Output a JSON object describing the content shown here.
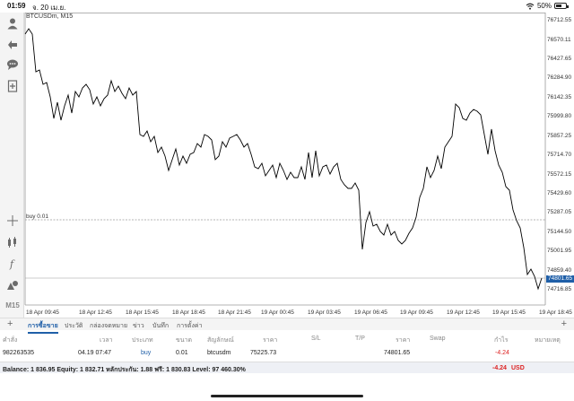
{
  "status_bar": {
    "time": "01:59",
    "date": "จ. 20 เม.ย.",
    "battery": "50%",
    "wifi_icon": "wifi-icon",
    "battery_icon": "battery-icon"
  },
  "chart": {
    "symbol_label": "BTCUSDm, M15",
    "order_line_label": "buy 0.01",
    "current_price_label": "74801.65",
    "y_ticks": [
      "76712.55",
      "76570.11",
      "76427.65",
      "76284.90",
      "76142.35",
      "75999.80",
      "75857.25",
      "75714.70",
      "75572.15",
      "75429.60",
      "75287.05",
      "75144.50",
      "75001.95",
      "74859.40",
      "74716.85"
    ],
    "x_ticks": [
      "18 Apr 09:45",
      "18 Apr 12:45",
      "18 Apr 15:45",
      "18 Apr 18:45",
      "18 Apr 21:45",
      "19 Apr 00:45",
      "19 Apr 03:45",
      "19 Apr 06:45",
      "19 Apr 09:45",
      "19 Apr 12:45",
      "19 Apr 15:45",
      "19 Apr 18:45"
    ],
    "colors": {
      "line": "#000000",
      "order_line": "#9a9a9a",
      "badge": "#1f5fa8"
    }
  },
  "sidebar": {
    "tools": [
      "profile-icon",
      "trade-arrows-icon",
      "chat-icon",
      "add-document-icon",
      "crosshair-icon",
      "indicator-icon",
      "function-icon",
      "objects-icon"
    ],
    "timeframe": "M15"
  },
  "tabs": {
    "items": [
      "การซื้อขาย",
      "ประวัติ",
      "กล่องจดหมาย",
      "ข่าว",
      "บันทึก",
      "การตั้งค่า"
    ],
    "active_index": 0
  },
  "table": {
    "headers": [
      "คำสั่ง",
      "เวลา",
      "ประเภท",
      "ขนาด",
      "สัญลักษณ์",
      "ราคา",
      "S/L",
      "T/P",
      "ราคา",
      "Swap",
      "กำไร",
      "หมายเหตุ"
    ],
    "row": {
      "order": "982263535",
      "time": "04.19 07:47",
      "type": "buy",
      "size": "0.01",
      "symbol": "btcusdm",
      "open_price": "75225.73",
      "sl": "",
      "tp": "",
      "current_price": "74801.65",
      "swap": "",
      "profit": "-4.24",
      "comment": ""
    }
  },
  "balance": {
    "summary": "Balance: 1 836.95 Equity: 1 832.71 หลักประกัน: 1.88 ฟรี: 1 830.83 Level: 97 460.30%",
    "profit": "-4.24",
    "currency": "USD"
  }
}
